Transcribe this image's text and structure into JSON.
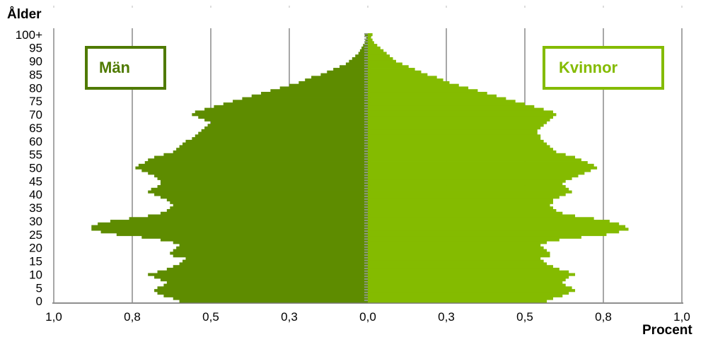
{
  "chart_data": {
    "type": "population-pyramid",
    "ylabel": "Ålder",
    "xlabel": "Procent",
    "x_tick_labels": [
      "1,0",
      "0,8",
      "0,5",
      "0,3",
      "0,0",
      "0,3",
      "0,5",
      "0,8",
      "1,0"
    ],
    "y_tick_labels": [
      "100+",
      "95",
      "90",
      "85",
      "80",
      "75",
      "70",
      "65",
      "60",
      "55",
      "50",
      "45",
      "40",
      "35",
      "30",
      "25",
      "20",
      "15",
      "10",
      "5",
      "0"
    ],
    "xlim": [
      -1.0,
      1.0
    ],
    "age_range": [
      0,
      100
    ],
    "grid": true,
    "series": [
      {
        "name": "Män",
        "color": "#5e8c00",
        "values": [
          0.6,
          0.62,
          0.65,
          0.67,
          0.68,
          0.67,
          0.65,
          0.64,
          0.66,
          0.68,
          0.7,
          0.67,
          0.64,
          0.62,
          0.6,
          0.59,
          0.58,
          0.62,
          0.63,
          0.62,
          0.61,
          0.6,
          0.62,
          0.66,
          0.72,
          0.8,
          0.85,
          0.88,
          0.88,
          0.86,
          0.82,
          0.76,
          0.7,
          0.66,
          0.64,
          0.63,
          0.62,
          0.63,
          0.64,
          0.66,
          0.68,
          0.7,
          0.69,
          0.67,
          0.66,
          0.66,
          0.67,
          0.68,
          0.7,
          0.72,
          0.74,
          0.73,
          0.71,
          0.7,
          0.68,
          0.65,
          0.62,
          0.61,
          0.6,
          0.59,
          0.58,
          0.56,
          0.55,
          0.54,
          0.53,
          0.52,
          0.51,
          0.5,
          0.52,
          0.54,
          0.56,
          0.55,
          0.52,
          0.49,
          0.46,
          0.43,
          0.4,
          0.37,
          0.34,
          0.31,
          0.28,
          0.25,
          0.22,
          0.2,
          0.18,
          0.15,
          0.13,
          0.11,
          0.09,
          0.07,
          0.06,
          0.05,
          0.04,
          0.03,
          0.025,
          0.02,
          0.015,
          0.01,
          0.008,
          0.005,
          0.01
        ]
      },
      {
        "name": "Kvinnor",
        "color": "#84bb00",
        "values": [
          0.57,
          0.59,
          0.62,
          0.64,
          0.66,
          0.65,
          0.63,
          0.62,
          0.63,
          0.64,
          0.66,
          0.64,
          0.61,
          0.59,
          0.57,
          0.56,
          0.55,
          0.58,
          0.58,
          0.57,
          0.56,
          0.55,
          0.57,
          0.61,
          0.68,
          0.76,
          0.8,
          0.83,
          0.82,
          0.8,
          0.77,
          0.72,
          0.66,
          0.62,
          0.6,
          0.59,
          0.58,
          0.59,
          0.59,
          0.61,
          0.63,
          0.65,
          0.64,
          0.63,
          0.62,
          0.63,
          0.65,
          0.67,
          0.69,
          0.71,
          0.73,
          0.72,
          0.7,
          0.68,
          0.66,
          0.63,
          0.6,
          0.59,
          0.58,
          0.57,
          0.56,
          0.55,
          0.55,
          0.54,
          0.54,
          0.55,
          0.56,
          0.57,
          0.58,
          0.59,
          0.6,
          0.59,
          0.56,
          0.53,
          0.5,
          0.47,
          0.44,
          0.41,
          0.38,
          0.35,
          0.32,
          0.29,
          0.26,
          0.24,
          0.22,
          0.19,
          0.17,
          0.15,
          0.13,
          0.11,
          0.09,
          0.08,
          0.07,
          0.06,
          0.05,
          0.04,
          0.03,
          0.02,
          0.015,
          0.01,
          0.015
        ]
      }
    ],
    "legend": [
      {
        "label": "Män",
        "color": "#4f7a00",
        "placement": "top-left"
      },
      {
        "label": "Kvinnor",
        "color": "#84bb00",
        "placement": "top-right"
      }
    ]
  }
}
